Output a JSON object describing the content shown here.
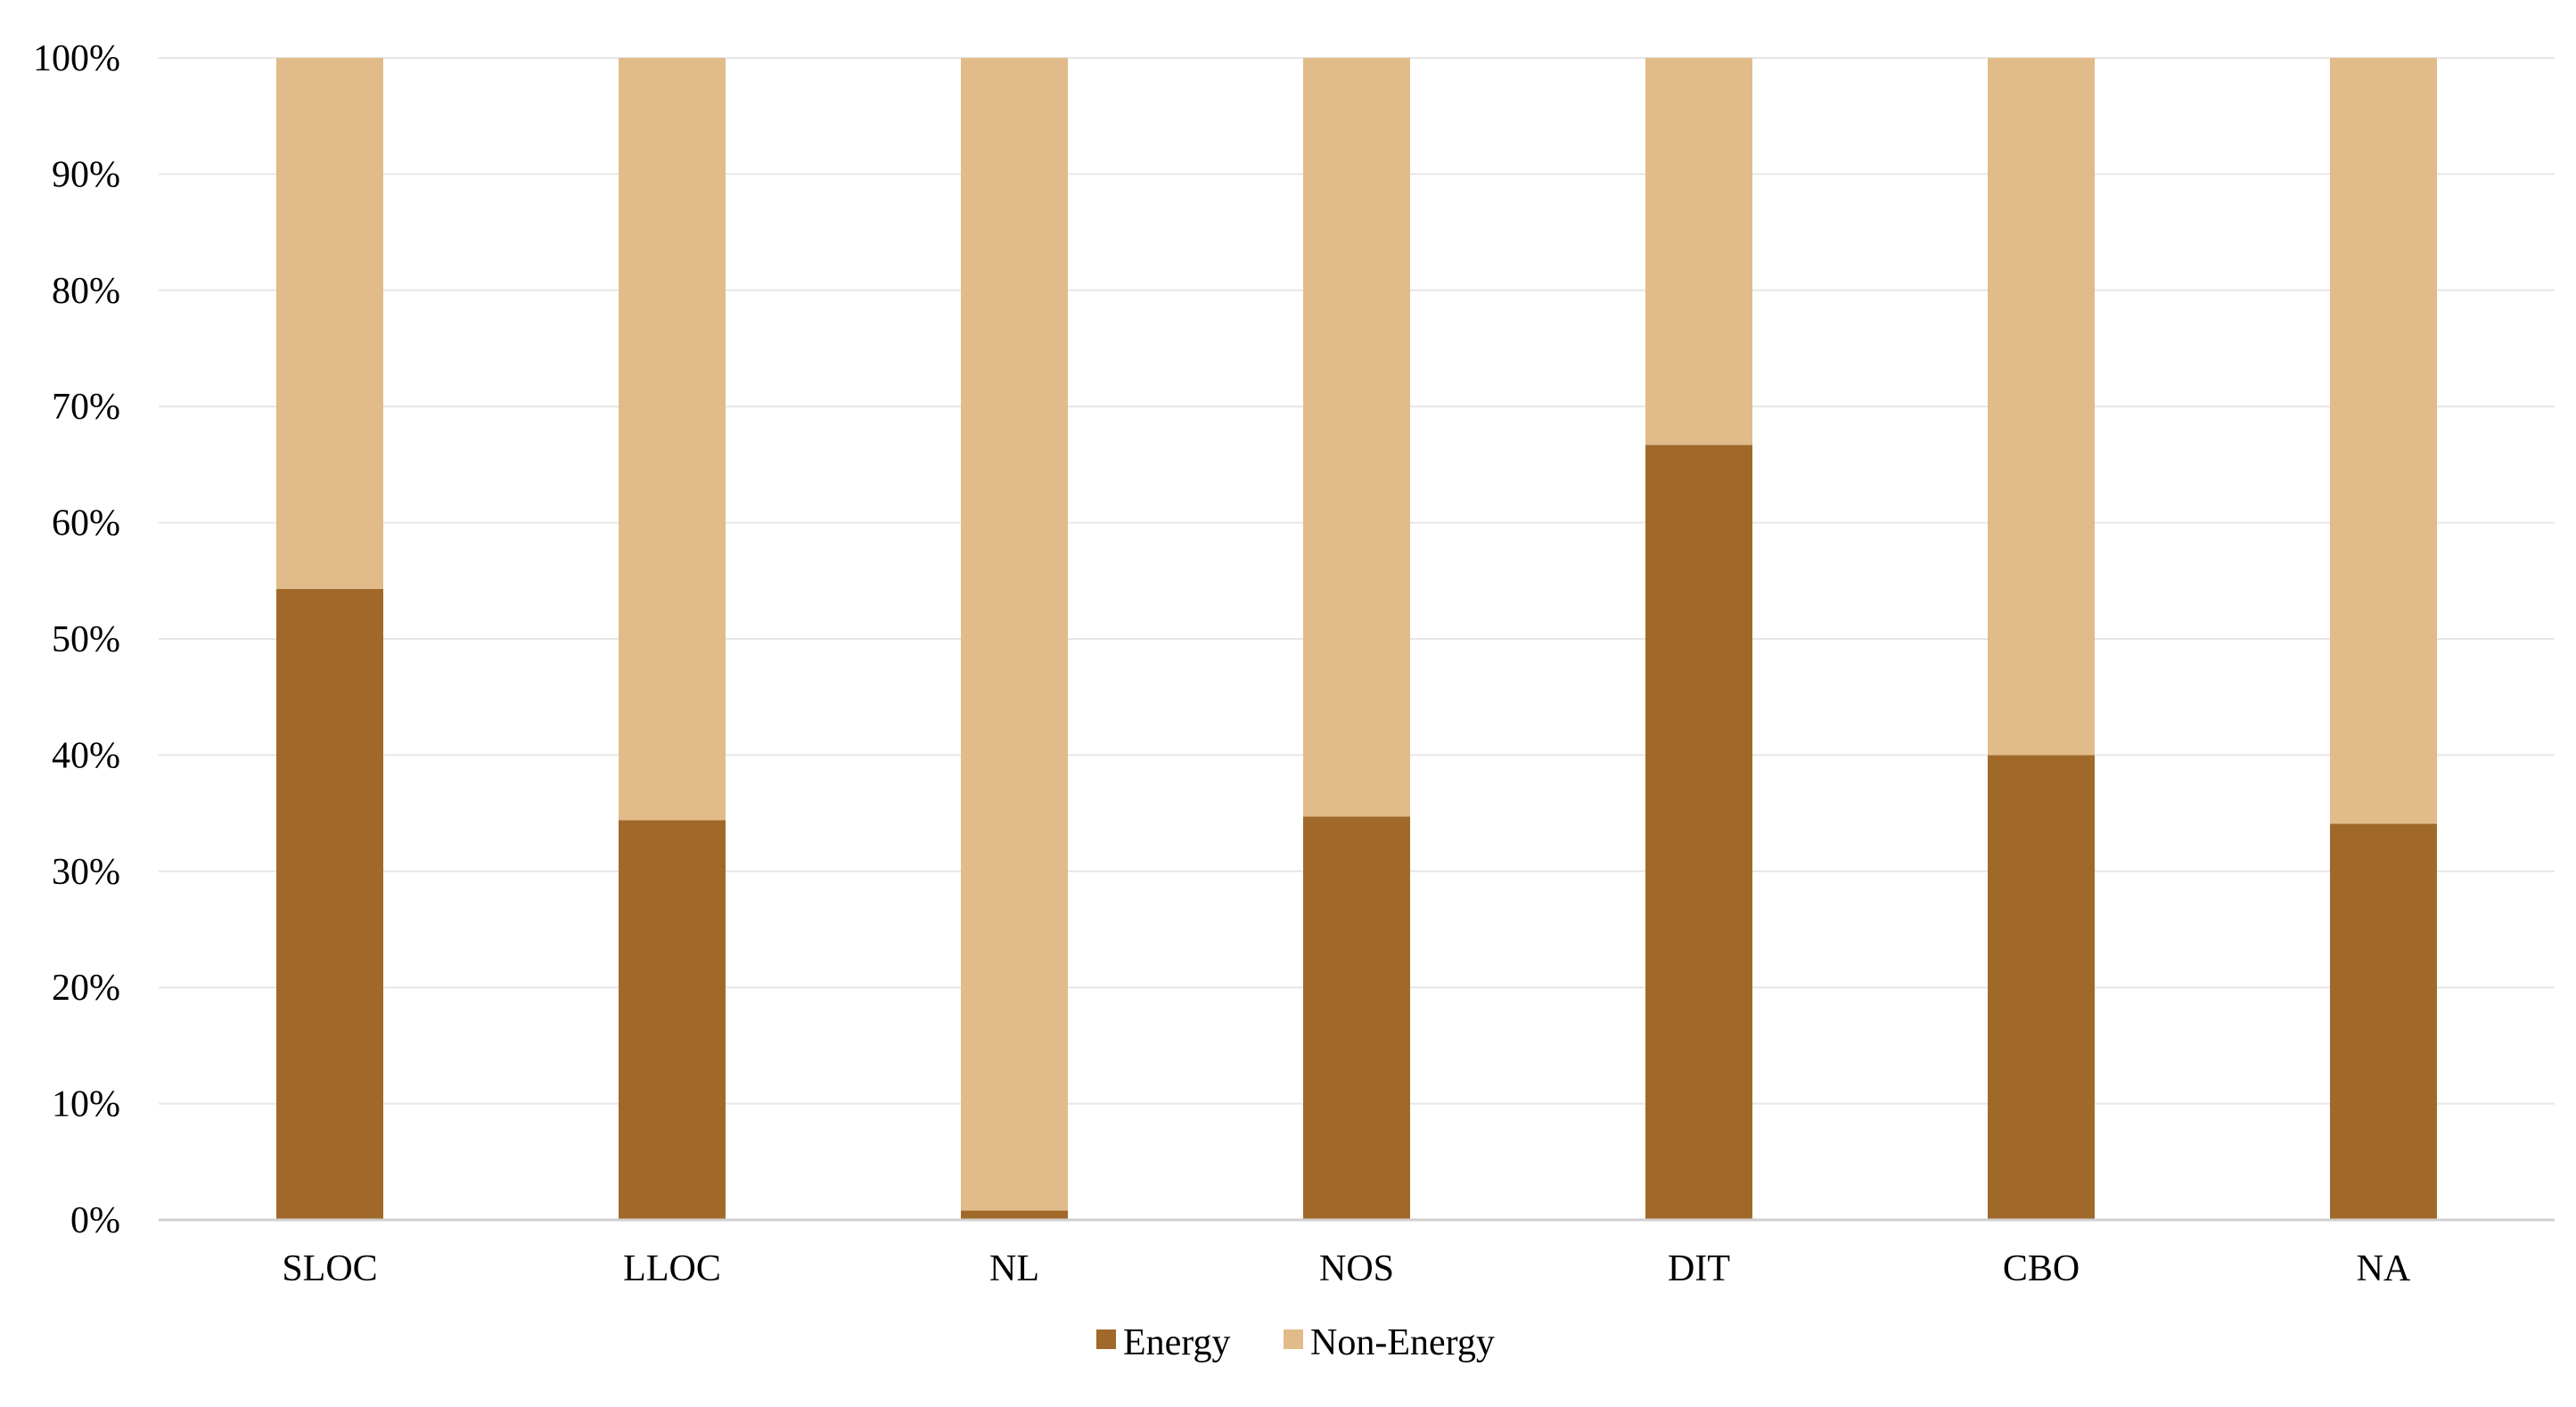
{
  "chart_data": {
    "type": "bar",
    "stacked": true,
    "stack_mode": "percent",
    "categories": [
      "SLOC",
      "LLOC",
      "NL",
      "NOS",
      "DIT",
      "CBO",
      "NA"
    ],
    "series": [
      {
        "name": "Energy",
        "color": "#A0692A",
        "values": [
          54.3,
          34.4,
          0.8,
          34.7,
          66.7,
          40.0,
          34.1
        ]
      },
      {
        "name": "Non-Energy",
        "color": "#E1BB89",
        "values": [
          45.7,
          65.6,
          99.2,
          65.3,
          33.3,
          60.0,
          65.9
        ]
      }
    ],
    "ylim": [
      0,
      100
    ],
    "yticks": [
      "0%",
      "10%",
      "20%",
      "30%",
      "40%",
      "50%",
      "60%",
      "70%",
      "80%",
      "90%",
      "100%"
    ],
    "title": "",
    "xlabel": "",
    "ylabel": "",
    "grid": true,
    "legend_position": "bottom-center"
  }
}
